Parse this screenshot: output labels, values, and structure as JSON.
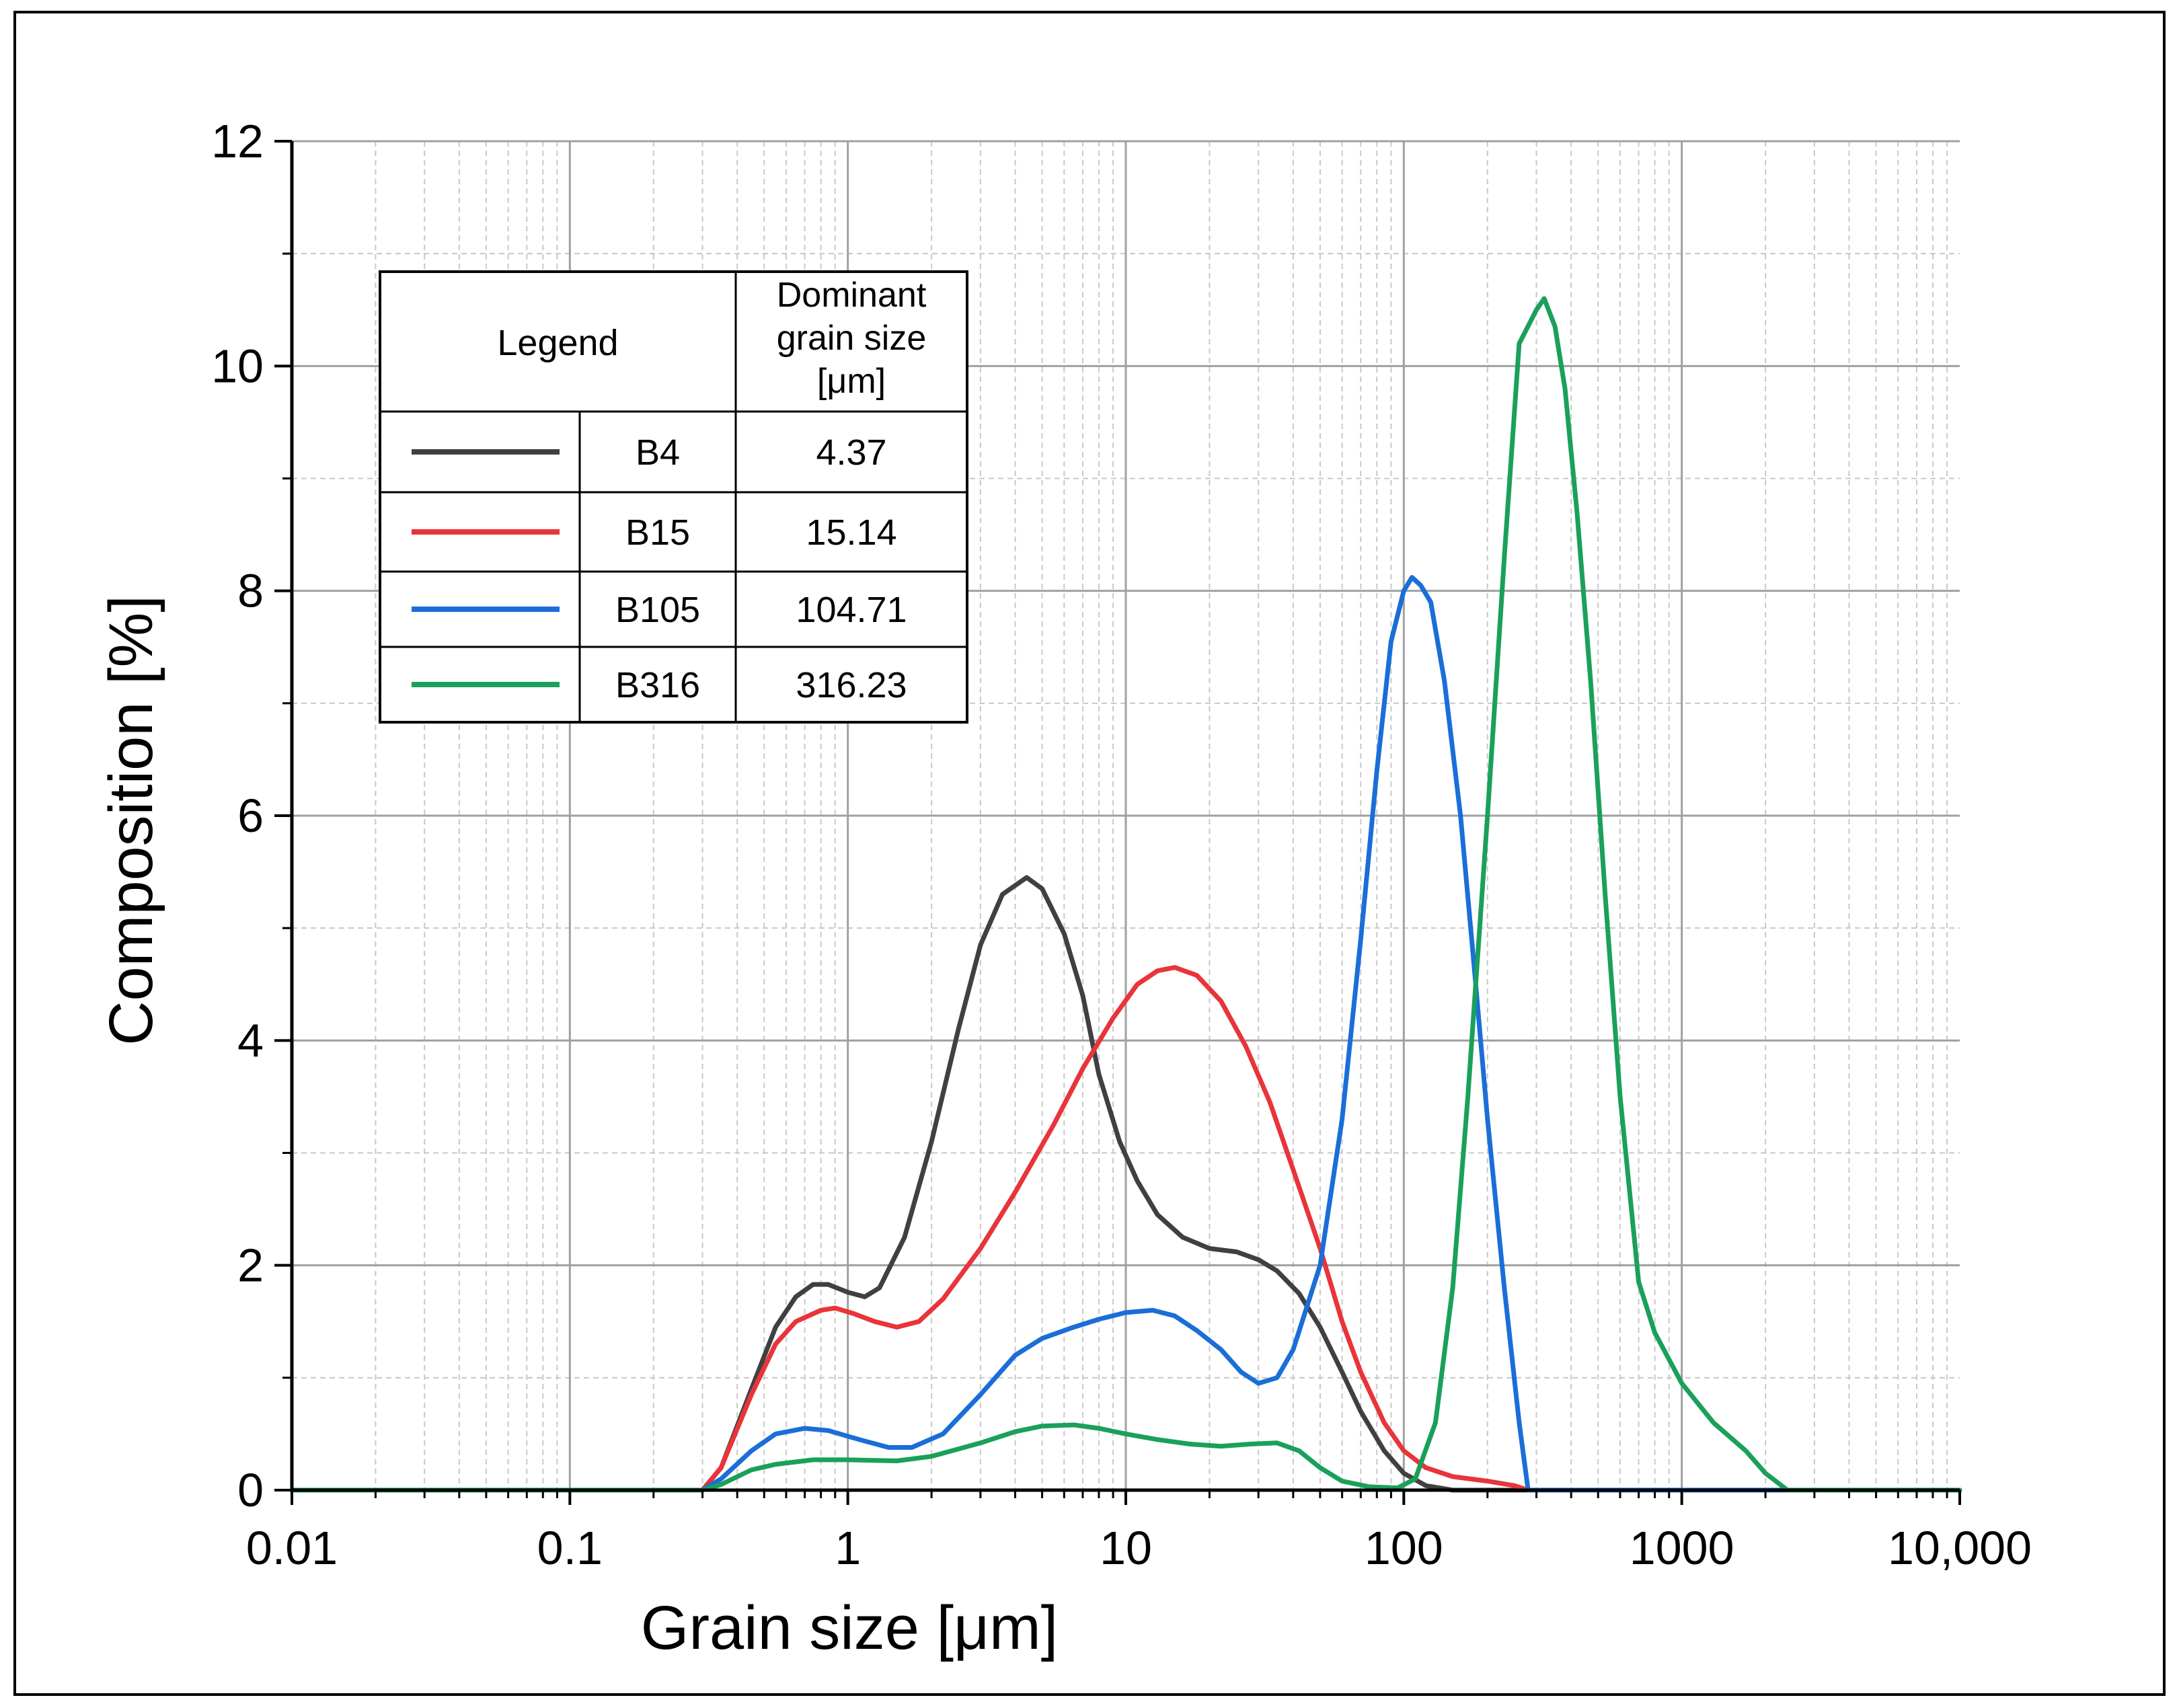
{
  "chart_data": {
    "type": "line",
    "xscale": "log",
    "xlim": [
      0.01,
      10000
    ],
    "ylim": [
      0,
      12
    ],
    "xlabel": "Grain size [μm]",
    "ylabel": "Composition [%]",
    "x_ticks": [
      {
        "value": 0.01,
        "label": "0.01"
      },
      {
        "value": 0.1,
        "label": "0.1"
      },
      {
        "value": 1,
        "label": "1"
      },
      {
        "value": 10,
        "label": "10"
      },
      {
        "value": 100,
        "label": "100"
      },
      {
        "value": 1000,
        "label": "1000"
      },
      {
        "value": 10000,
        "label": "10,000"
      }
    ],
    "y_ticks": [
      {
        "value": 0,
        "label": "0"
      },
      {
        "value": 2,
        "label": "2"
      },
      {
        "value": 4,
        "label": "4"
      },
      {
        "value": 6,
        "label": "6"
      },
      {
        "value": 8,
        "label": "8"
      },
      {
        "value": 10,
        "label": "10"
      },
      {
        "value": 12,
        "label": "12"
      }
    ],
    "grid": true,
    "legend": {
      "position": "top-left",
      "header_legend": "Legend",
      "header_size": [
        "Dominant",
        "grain size",
        "[μm]"
      ]
    },
    "series": [
      {
        "name": "B4",
        "dominant": "4.37",
        "color": "#404040",
        "points": [
          [
            0.01,
            0
          ],
          [
            0.3,
            0
          ],
          [
            0.35,
            0.2
          ],
          [
            0.45,
            0.9
          ],
          [
            0.55,
            1.45
          ],
          [
            0.65,
            1.72
          ],
          [
            0.75,
            1.83
          ],
          [
            0.85,
            1.83
          ],
          [
            1,
            1.76
          ],
          [
            1.15,
            1.72
          ],
          [
            1.3,
            1.8
          ],
          [
            1.6,
            2.25
          ],
          [
            2,
            3.1
          ],
          [
            2.5,
            4.1
          ],
          [
            3,
            4.85
          ],
          [
            3.6,
            5.3
          ],
          [
            4.4,
            5.45
          ],
          [
            5,
            5.35
          ],
          [
            6,
            4.95
          ],
          [
            7,
            4.4
          ],
          [
            8,
            3.7
          ],
          [
            9.5,
            3.1
          ],
          [
            11,
            2.75
          ],
          [
            13,
            2.45
          ],
          [
            16,
            2.25
          ],
          [
            20,
            2.15
          ],
          [
            25,
            2.12
          ],
          [
            30,
            2.05
          ],
          [
            35,
            1.95
          ],
          [
            42,
            1.75
          ],
          [
            50,
            1.45
          ],
          [
            60,
            1.05
          ],
          [
            70,
            0.7
          ],
          [
            85,
            0.35
          ],
          [
            100,
            0.15
          ],
          [
            120,
            0.04
          ],
          [
            150,
            0
          ],
          [
            10000,
            0
          ]
        ]
      },
      {
        "name": "B15",
        "dominant": "15.14",
        "color": "#e8343a",
        "points": [
          [
            0.01,
            0
          ],
          [
            0.3,
            0
          ],
          [
            0.35,
            0.2
          ],
          [
            0.45,
            0.85
          ],
          [
            0.55,
            1.3
          ],
          [
            0.65,
            1.5
          ],
          [
            0.8,
            1.6
          ],
          [
            0.9,
            1.62
          ],
          [
            1.05,
            1.57
          ],
          [
            1.25,
            1.5
          ],
          [
            1.5,
            1.45
          ],
          [
            1.8,
            1.5
          ],
          [
            2.2,
            1.7
          ],
          [
            3,
            2.15
          ],
          [
            4,
            2.65
          ],
          [
            5.5,
            3.25
          ],
          [
            7,
            3.75
          ],
          [
            9,
            4.2
          ],
          [
            11,
            4.5
          ],
          [
            13,
            4.62
          ],
          [
            15,
            4.65
          ],
          [
            18,
            4.58
          ],
          [
            22,
            4.35
          ],
          [
            27,
            3.95
          ],
          [
            33,
            3.45
          ],
          [
            40,
            2.85
          ],
          [
            50,
            2.15
          ],
          [
            60,
            1.5
          ],
          [
            70,
            1.05
          ],
          [
            85,
            0.6
          ],
          [
            100,
            0.35
          ],
          [
            120,
            0.2
          ],
          [
            150,
            0.12
          ],
          [
            200,
            0.08
          ],
          [
            250,
            0.04
          ],
          [
            280,
            0
          ],
          [
            10000,
            0
          ]
        ]
      },
      {
        "name": "B105",
        "dominant": "104.71",
        "color": "#1a6ed8",
        "points": [
          [
            0.01,
            0
          ],
          [
            0.3,
            0
          ],
          [
            0.35,
            0.1
          ],
          [
            0.45,
            0.35
          ],
          [
            0.55,
            0.5
          ],
          [
            0.7,
            0.55
          ],
          [
            0.85,
            0.53
          ],
          [
            1.1,
            0.45
          ],
          [
            1.4,
            0.38
          ],
          [
            1.7,
            0.38
          ],
          [
            2.2,
            0.5
          ],
          [
            3,
            0.85
          ],
          [
            4,
            1.2
          ],
          [
            5,
            1.35
          ],
          [
            6.5,
            1.45
          ],
          [
            8,
            1.52
          ],
          [
            10,
            1.58
          ],
          [
            12.5,
            1.6
          ],
          [
            15,
            1.55
          ],
          [
            18,
            1.42
          ],
          [
            22,
            1.25
          ],
          [
            26,
            1.05
          ],
          [
            30,
            0.95
          ],
          [
            35,
            1.0
          ],
          [
            40,
            1.25
          ],
          [
            50,
            2.0
          ],
          [
            60,
            3.3
          ],
          [
            70,
            4.9
          ],
          [
            80,
            6.4
          ],
          [
            90,
            7.55
          ],
          [
            100,
            8.0
          ],
          [
            107,
            8.12
          ],
          [
            115,
            8.05
          ],
          [
            125,
            7.9
          ],
          [
            140,
            7.2
          ],
          [
            160,
            6.0
          ],
          [
            180,
            4.6
          ],
          [
            200,
            3.3
          ],
          [
            230,
            1.8
          ],
          [
            260,
            0.6
          ],
          [
            280,
            0
          ],
          [
            10000,
            0
          ]
        ]
      },
      {
        "name": "B316",
        "dominant": "316.23",
        "color": "#1aa05a",
        "points": [
          [
            0.01,
            0
          ],
          [
            0.3,
            0
          ],
          [
            0.35,
            0.05
          ],
          [
            0.45,
            0.18
          ],
          [
            0.55,
            0.23
          ],
          [
            0.75,
            0.27
          ],
          [
            1,
            0.27
          ],
          [
            1.5,
            0.26
          ],
          [
            2,
            0.3
          ],
          [
            3,
            0.42
          ],
          [
            4,
            0.52
          ],
          [
            5,
            0.57
          ],
          [
            6.5,
            0.58
          ],
          [
            8,
            0.55
          ],
          [
            10,
            0.5
          ],
          [
            13,
            0.45
          ],
          [
            17,
            0.41
          ],
          [
            22,
            0.39
          ],
          [
            28,
            0.41
          ],
          [
            35,
            0.42
          ],
          [
            42,
            0.35
          ],
          [
            50,
            0.2
          ],
          [
            60,
            0.08
          ],
          [
            75,
            0.03
          ],
          [
            95,
            0.02
          ],
          [
            110,
            0.1
          ],
          [
            130,
            0.6
          ],
          [
            150,
            1.8
          ],
          [
            170,
            3.5
          ],
          [
            200,
            6.0
          ],
          [
            230,
            8.3
          ],
          [
            260,
            10.2
          ],
          [
            300,
            10.5
          ],
          [
            320,
            10.6
          ],
          [
            350,
            10.35
          ],
          [
            380,
            9.8
          ],
          [
            420,
            8.7
          ],
          [
            470,
            7.2
          ],
          [
            530,
            5.3
          ],
          [
            600,
            3.5
          ],
          [
            700,
            1.85
          ],
          [
            800,
            1.4
          ],
          [
            1000,
            0.95
          ],
          [
            1300,
            0.6
          ],
          [
            1700,
            0.35
          ],
          [
            2000,
            0.15
          ],
          [
            2400,
            0
          ],
          [
            10000,
            0
          ]
        ]
      }
    ]
  }
}
